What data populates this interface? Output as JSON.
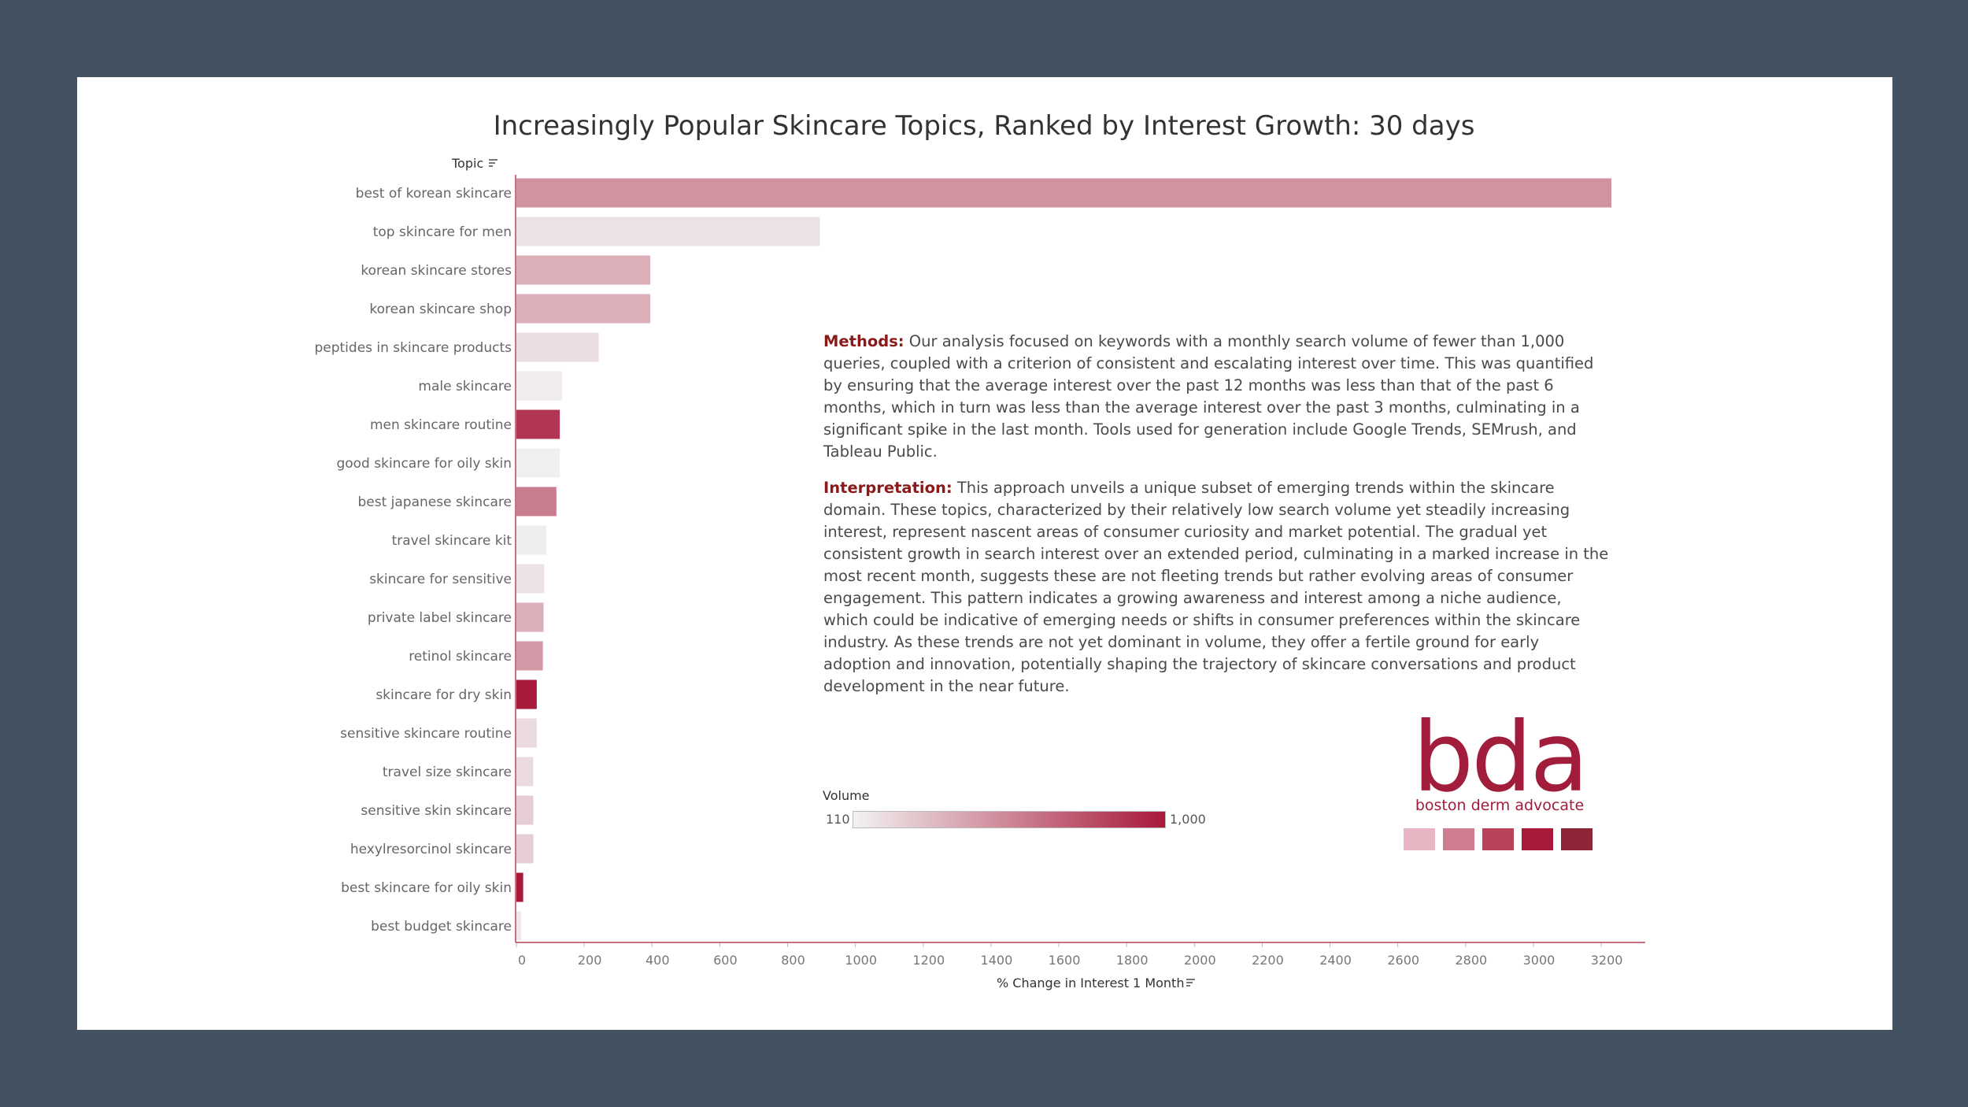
{
  "chart_data": {
    "type": "bar",
    "orientation": "horizontal",
    "title": "Increasingly Popular Skincare Topics, Ranked by Interest Growth: 30 days",
    "ylabel": "Topic",
    "xlabel": "% Change in Interest 1 Month",
    "xlim": [
      0,
      3300
    ],
    "xticks": [
      0,
      200,
      400,
      600,
      800,
      1000,
      1200,
      1400,
      1600,
      1800,
      2000,
      2200,
      2400,
      2600,
      2800,
      3000,
      3200
    ],
    "color_scale": {
      "title": "Volume",
      "min": 110,
      "max": 1000,
      "min_label": "110",
      "max_label": "1,000",
      "low_color": "#f2f2f2",
      "high_color": "#a8193a"
    },
    "bars": [
      {
        "topic": "best of korean skincare",
        "value": 3230,
        "volume": 500
      },
      {
        "topic": "top skincare for men",
        "value": 895,
        "volume": 180
      },
      {
        "topic": "korean skincare stores",
        "value": 395,
        "volume": 390
      },
      {
        "topic": "korean skincare shop",
        "value": 395,
        "volume": 390
      },
      {
        "topic": "peptides in skincare products",
        "value": 243,
        "volume": 190
      },
      {
        "topic": "male skincare",
        "value": 135,
        "volume": 140
      },
      {
        "topic": "men skincare routine",
        "value": 128,
        "volume": 880
      },
      {
        "topic": "good skincare for oily skin",
        "value": 128,
        "volume": 120
      },
      {
        "topic": "best japanese skincare",
        "value": 118,
        "volume": 590
      },
      {
        "topic": "travel skincare kit",
        "value": 88,
        "volume": 130
      },
      {
        "topic": "skincare for sensitive",
        "value": 82,
        "volume": 170
      },
      {
        "topic": "private label skincare",
        "value": 80,
        "volume": 390
      },
      {
        "topic": "retinol skincare",
        "value": 78,
        "volume": 480
      },
      {
        "topic": "skincare for dry skin",
        "value": 60,
        "volume": 1000
      },
      {
        "topic": "sensitive skincare routine",
        "value": 60,
        "volume": 210
      },
      {
        "topic": "travel size skincare",
        "value": 50,
        "volume": 210
      },
      {
        "topic": "sensitive skin skincare",
        "value": 50,
        "volume": 260
      },
      {
        "topic": "hexylresorcinol skincare",
        "value": 50,
        "volume": 260
      },
      {
        "topic": "best skincare for oily skin",
        "value": 20,
        "volume": 1000
      },
      {
        "topic": "best budget skincare",
        "value": 14,
        "volume": 150
      }
    ]
  },
  "text": {
    "methods_lead": "Methods:",
    "methods_body": " Our analysis focused on keywords with a monthly search volume of fewer than 1,000 queries, coupled with a criterion of consistent and escalating interest over time. This was quantified by ensuring that the average interest over the past 12 months was less than that of the past 6 months, which in turn was less than the average interest over the past 3 months, culminating in a significant spike in the last month. Tools used for generation include Google Trends, SEMrush, and Tableau Public.",
    "interp_lead": "Interpretation:",
    "interp_body": " This approach unveils a unique subset of emerging trends within the skincare domain. These topics, characterized by their relatively low search volume yet steadily increasing interest, represent nascent areas of consumer curiosity and market potential. The gradual yet consistent growth in search interest over an extended period, culminating in a marked increase in the most recent month, suggests these are not fleeting trends but rather evolving areas of consumer engagement. This pattern indicates a growing awareness and interest among a niche audience, which could be indicative of emerging needs or shifts in consumer preferences within the skincare industry. As these trends are not yet dominant in volume, they offer a fertile ground for early adoption and innovation, potentially shaping the trajectory of skincare conversations and product development in the near future."
  },
  "logo": {
    "mark": "bda",
    "name": "boston derm advocate",
    "swatches": [
      "#e8b6c3",
      "#cf7d8e",
      "#b94358",
      "#a8193a",
      "#8b2537"
    ]
  },
  "icons": {
    "sort": "sort-icon"
  }
}
